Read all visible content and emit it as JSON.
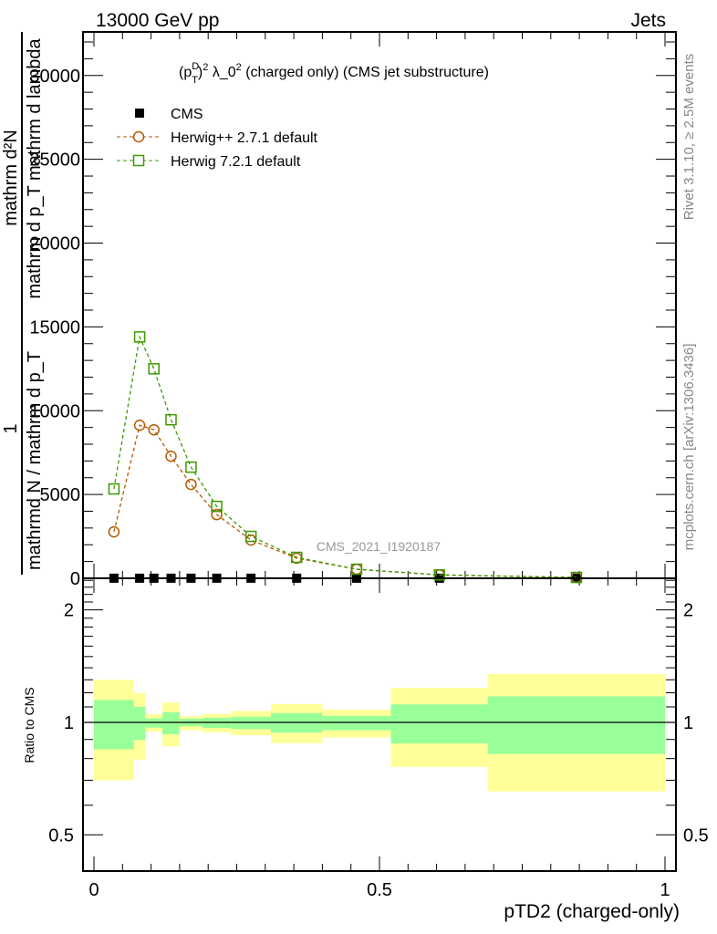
{
  "header": {
    "left": "13000 GeV pp",
    "right": "Jets"
  },
  "side_labels": {
    "rivet": "Rivet 3.1.10, ≥ 2.5M events",
    "mcplots": "mcplots.cern.ch [arXiv:1306.3436]"
  },
  "watermark": "CMS_2021_I1920187",
  "colors": {
    "data": "#000000",
    "herwigpp": "#b35a00",
    "herwig7": "#3a9a00",
    "band_yellow": "#ffff99",
    "band_green": "#99ff99"
  },
  "chart_data": [
    {
      "type": "line",
      "title_parts": {
        "p": "(p",
        "sup_d": "D",
        "sub_t": "T",
        "close": ")",
        "sup2": "2",
        "rest": " λ_0",
        "sup2b": "2",
        "tail": " (charged only) (CMS jet substructure)"
      },
      "ylabel": {
        "num_left": "mathrm d²N",
        "den_left": "1",
        "num_right": "mathrm d p_T mathrm d lambda",
        "den_right": "mathrmd N / mathrm d p_T"
      },
      "xlim": [
        0,
        1
      ],
      "ylim": [
        0,
        32600
      ],
      "yticks": [
        0,
        5000,
        10000,
        15000,
        20000,
        25000,
        30000
      ],
      "ytick_labels": [
        "0",
        "5000",
        "10000",
        "15000",
        "20000",
        "25000",
        "30000"
      ],
      "legend_position": "top-left",
      "bin_edges": [
        0,
        0.07,
        0.09,
        0.12,
        0.15,
        0.19,
        0.24,
        0.31,
        0.4,
        0.52,
        0.69,
        1.0
      ],
      "x": [
        0.035,
        0.08,
        0.105,
        0.135,
        0.17,
        0.215,
        0.275,
        0.355,
        0.46,
        0.605,
        0.845
      ],
      "series": [
        {
          "name": "CMS",
          "marker": "square-filled",
          "values": [
            5,
            5,
            5,
            5,
            5,
            5,
            5,
            5,
            5,
            5,
            5
          ]
        },
        {
          "name": "Herwig++ 2.7.1 default",
          "marker": "circle-open",
          "values": [
            2770,
            9130,
            8860,
            7280,
            5600,
            3800,
            2280,
            1200,
            540,
            200,
            50
          ]
        },
        {
          "name": "Herwig 7.2.1 default",
          "marker": "square-open",
          "values": [
            5330,
            14400,
            12500,
            9460,
            6630,
            4290,
            2500,
            1250,
            540,
            200,
            50
          ]
        }
      ]
    },
    {
      "type": "area",
      "ylabel": "Ratio to CMS",
      "xlabel": "pTD2 (charged-only)",
      "yscale": "log",
      "ylim": [
        0.4,
        2.43
      ],
      "yticks": [
        0.5,
        1,
        2
      ],
      "ytick_labels": [
        "0.5",
        "1",
        "2"
      ],
      "xticks": [
        0,
        0.5,
        1
      ],
      "xtick_labels": [
        "0",
        "0.5",
        "1"
      ],
      "bands": {
        "yellow_high": [
          1.3,
          1.199,
          1.053,
          1.13,
          1.039,
          1.053,
          1.073,
          1.12,
          1.081,
          1.236,
          1.347
        ],
        "green_high": [
          1.147,
          1.1,
          1.025,
          1.065,
          1.023,
          1.029,
          1.035,
          1.059,
          1.041,
          1.117,
          1.174
        ],
        "green_low": [
          0.847,
          0.897,
          0.968,
          0.93,
          0.976,
          0.966,
          0.959,
          0.939,
          0.953,
          0.878,
          0.823
        ],
        "yellow_low": [
          0.7,
          0.795,
          0.944,
          0.863,
          0.953,
          0.94,
          0.923,
          0.88,
          0.911,
          0.76,
          0.653
        ]
      }
    }
  ]
}
